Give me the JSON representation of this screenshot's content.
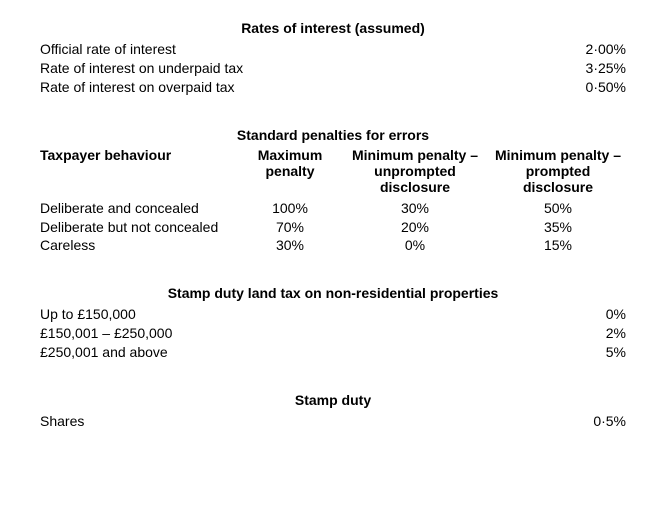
{
  "rates_section": {
    "title": "Rates of interest (assumed)",
    "rows": [
      {
        "label": "Official rate of interest",
        "value": "2·00%"
      },
      {
        "label": "Rate of interest on underpaid tax",
        "value": "3·25%"
      },
      {
        "label": "Rate of interest on overpaid tax",
        "value": "0·50%"
      }
    ]
  },
  "penalties_section": {
    "title": "Standard penalties for errors",
    "headers": {
      "behaviour": "Taxpayer behaviour",
      "max_l1": "Maximum",
      "max_l2": "penalty",
      "min1_l1": "Minimum penalty –",
      "min1_l2": "unprompted",
      "min1_l3": "disclosure",
      "min2_l1": "Minimum penalty –",
      "min2_l2": "prompted",
      "min2_l3": "disclosure"
    },
    "rows": [
      {
        "behaviour": "Deliberate and concealed",
        "max": "100%",
        "min1": "30%",
        "min2": "50%"
      },
      {
        "behaviour": "Deliberate but not concealed",
        "max": "70%",
        "min1": "20%",
        "min2": "35%"
      },
      {
        "behaviour": "Careless",
        "max": "30%",
        "min1": "0%",
        "min2": "15%"
      }
    ]
  },
  "sdlt_section": {
    "title": "Stamp duty land tax on non-residential properties",
    "rows": [
      {
        "label": "Up to £150,000",
        "value": "0%"
      },
      {
        "label": "£150,001 – £250,000",
        "value": "2%"
      },
      {
        "label": "£250,001 and above",
        "value": "5%"
      }
    ]
  },
  "stamp_duty_section": {
    "title": "Stamp duty",
    "rows": [
      {
        "label": "Shares",
        "value": "0·5%"
      }
    ]
  }
}
